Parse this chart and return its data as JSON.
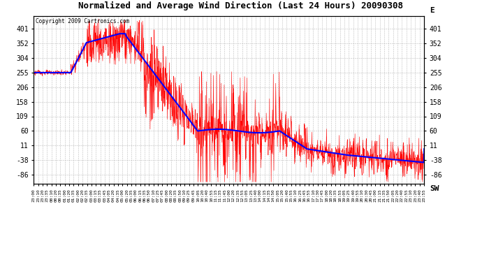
{
  "title": "Normalized and Average Wind Direction (Last 24 Hours) 20090308",
  "copyright": "Copyright 2009 Cartronics.com",
  "yticks_left": [
    401,
    352,
    304,
    255,
    206,
    158,
    109,
    60,
    11,
    -38,
    -86
  ],
  "yticks_right": [
    401,
    352,
    304,
    255,
    206,
    158,
    109,
    60,
    11,
    -38,
    -86
  ],
  "ylim": [
    -115,
    445
  ],
  "background_color": "#ffffff",
  "grid_color": "#bbbbbb",
  "red_color": "#ff0000",
  "blue_color": "#0000ff",
  "x_labels": [
    "23:00",
    "23:10",
    "23:20",
    "23:35",
    "00:10",
    "00:20",
    "00:35",
    "01:00",
    "01:20",
    "01:35",
    "02:00",
    "02:20",
    "02:35",
    "03:00",
    "03:15",
    "03:35",
    "03:45",
    "04:05",
    "04:20",
    "04:35",
    "05:00",
    "05:20",
    "05:35",
    "06:00",
    "06:15",
    "06:35",
    "06:50",
    "07:10",
    "07:25",
    "07:45",
    "08:00",
    "08:20",
    "08:35",
    "08:50",
    "09:10",
    "09:25",
    "09:45",
    "10:05",
    "10:20",
    "10:40",
    "10:55",
    "11:15",
    "11:35",
    "11:45",
    "12:00",
    "12:20",
    "12:35",
    "12:55",
    "13:05",
    "13:25",
    "13:40",
    "14:00",
    "14:15",
    "14:35",
    "14:50",
    "15:05",
    "15:20",
    "15:40",
    "15:55",
    "16:10",
    "16:25",
    "16:45",
    "16:55",
    "17:10",
    "17:30",
    "17:45",
    "18:00",
    "18:20",
    "18:35",
    "18:55",
    "19:05",
    "19:25",
    "19:40",
    "19:55",
    "20:10",
    "20:30",
    "20:45",
    "21:00",
    "21:15",
    "21:35",
    "21:50",
    "22:05",
    "22:20",
    "22:40",
    "22:55",
    "23:10",
    "23:20",
    "23:40",
    "23:55"
  ]
}
